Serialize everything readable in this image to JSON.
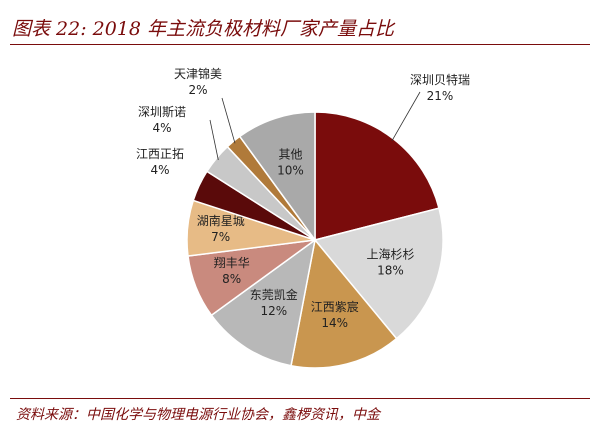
{
  "header": {
    "title": "图表 22: 2018 年主流负极材料厂家产量占比"
  },
  "chart_data": {
    "type": "pie",
    "title": "",
    "slices": [
      {
        "name": "深圳贝特瑞",
        "value": 21,
        "label": "21%",
        "color": "#7a0c0c"
      },
      {
        "name": "上海杉杉",
        "value": 18,
        "label": "18%",
        "color": "#d9d9d9"
      },
      {
        "name": "江西紫宸",
        "value": 14,
        "label": "14%",
        "color": "#c9964f"
      },
      {
        "name": "东莞凯金",
        "value": 12,
        "label": "12%",
        "color": "#b8b8b8"
      },
      {
        "name": "翔丰华",
        "value": 8,
        "label": "8%",
        "color": "#c98a7e"
      },
      {
        "name": "湖南星城",
        "value": 7,
        "label": "7%",
        "color": "#e7bb86"
      },
      {
        "name": "江西正拓",
        "value": 4,
        "label": "4%",
        "color": "#5a0a0a"
      },
      {
        "name": "深圳斯诺",
        "value": 4,
        "label": "4%",
        "color": "#c8c8c8"
      },
      {
        "name": "天津锦美",
        "value": 2,
        "label": "2%",
        "color": "#b07a3a"
      },
      {
        "name": "其他",
        "value": 10,
        "label": "10%",
        "color": "#a9a9a9"
      }
    ]
  },
  "footer": {
    "source_text": "资料来源：中国化学与物理电源行业协会，鑫椤资讯，中金"
  }
}
